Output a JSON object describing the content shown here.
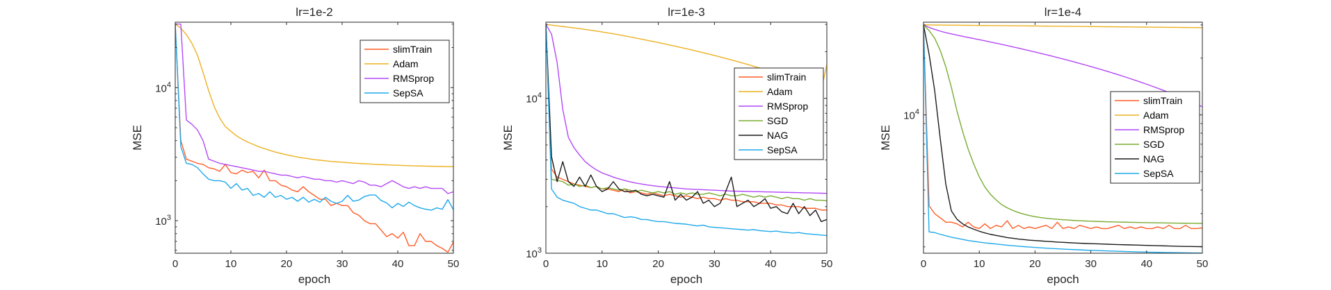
{
  "figure": {
    "xlabel": "epoch",
    "ylabel": "MSE"
  },
  "chart_data": [
    {
      "type": "line",
      "title": "lr=1e-2",
      "xlabel": "epoch",
      "ylabel": "MSE",
      "yscale": "log",
      "xlim": [
        0,
        50
      ],
      "ylim": [
        570,
        31000
      ],
      "xticks": [
        "0",
        "10",
        "20",
        "30",
        "40",
        "50"
      ],
      "yticks": [
        {
          "base": "10",
          "exp": "3",
          "value": 1000
        },
        {
          "base": "10",
          "exp": "4",
          "value": 10000
        }
      ],
      "legend_position": "top-right",
      "series": [
        {
          "name": "slimTrain",
          "color": "#ff5b25",
          "values": [
            30000,
            4000,
            2900,
            2800,
            2700,
            2650,
            2500,
            2450,
            2350,
            2650,
            2300,
            2250,
            2400,
            2300,
            2350,
            2100,
            2400,
            2000,
            2000,
            1850,
            1800,
            1700,
            1650,
            1800,
            1650,
            1550,
            1450,
            1450,
            1300,
            1350,
            1300,
            1300,
            1150,
            1100,
            1000,
            950,
            950,
            850,
            760,
            800,
            740,
            820,
            650,
            650,
            800,
            700,
            700,
            650,
            620,
            580,
            690
          ]
        },
        {
          "name": "Adam",
          "color": "#ecb01f",
          "values": [
            30000,
            28000,
            25000,
            21500,
            17500,
            13000,
            9500,
            7200,
            5900,
            5100,
            4700,
            4350,
            4100,
            3900,
            3750,
            3600,
            3480,
            3380,
            3280,
            3200,
            3130,
            3070,
            3010,
            2960,
            2920,
            2880,
            2850,
            2820,
            2790,
            2770,
            2750,
            2730,
            2710,
            2695,
            2680,
            2665,
            2650,
            2640,
            2630,
            2620,
            2610,
            2600,
            2592,
            2585,
            2578,
            2572,
            2566,
            2560,
            2555,
            2550,
            2545
          ]
        },
        {
          "name": "RMSprop",
          "color": "#b347f7",
          "values": [
            30000,
            30000,
            5700,
            5300,
            4800,
            4000,
            2900,
            2800,
            2700,
            2650,
            2600,
            2550,
            2500,
            2450,
            2400,
            2350,
            2350,
            2300,
            2250,
            2200,
            2200,
            2150,
            2100,
            2150,
            2100,
            2050,
            2050,
            2000,
            2000,
            1950,
            2000,
            1950,
            1900,
            2000,
            1950,
            1850,
            1850,
            1800,
            1900,
            2000,
            1900,
            1800,
            1750,
            1800,
            1750,
            1800,
            1750,
            1750,
            1750,
            1600,
            1650
          ]
        },
        {
          "name": "SepSA",
          "color": "#1ea8ea",
          "values": [
            30000,
            3600,
            2700,
            2650,
            2500,
            2250,
            2050,
            2000,
            2000,
            1950,
            1750,
            1900,
            1700,
            1750,
            1550,
            1600,
            1500,
            1650,
            1500,
            1550,
            1450,
            1500,
            1400,
            1500,
            1380,
            1450,
            1380,
            1500,
            1400,
            1350,
            1400,
            1550,
            1400,
            1430,
            1520,
            1560,
            1560,
            1420,
            1360,
            1250,
            1350,
            1280,
            1380,
            1300,
            1250,
            1220,
            1200,
            1250,
            1220,
            1440,
            1210
          ]
        }
      ]
    },
    {
      "type": "line",
      "title": "lr=1e-3",
      "xlabel": "epoch",
      "ylabel": "MSE",
      "yscale": "log",
      "xlim": [
        0,
        50
      ],
      "ylim": [
        1000,
        31000
      ],
      "xticks": [
        "0",
        "10",
        "20",
        "30",
        "40",
        "50"
      ],
      "yticks": [
        {
          "base": "10",
          "exp": "3",
          "value": 1000
        },
        {
          "base": "10",
          "exp": "4",
          "value": 10000
        }
      ],
      "legend_position": "center-right",
      "series": [
        {
          "name": "slimTrain",
          "color": "#ff5b25",
          "values": [
            30000,
            3500,
            3100,
            3000,
            2900,
            2800,
            2750,
            2700,
            2650,
            2700,
            2600,
            2600,
            2550,
            2500,
            2600,
            2450,
            2500,
            2450,
            2400,
            2450,
            2400,
            2350,
            2400,
            2350,
            2300,
            2350,
            2300,
            2250,
            2300,
            2250,
            2250,
            2200,
            2250,
            2200,
            2200,
            2150,
            2150,
            2150,
            2100,
            2100,
            2100,
            2050,
            2050,
            2000,
            2000,
            2000,
            1950,
            1950,
            1950,
            1900,
            1900
          ]
        },
        {
          "name": "Adam",
          "color": "#ecb01f",
          "values": [
            30000,
            29700,
            29400,
            29100,
            28800,
            28500,
            28200,
            27850,
            27500,
            27150,
            26800,
            26450,
            26100,
            25700,
            25300,
            24900,
            24500,
            24100,
            23700,
            23300,
            22900,
            22500,
            22100,
            21700,
            21300,
            20900,
            20500,
            20100,
            19700,
            19300,
            18900,
            18500,
            18100,
            17700,
            17300,
            16900,
            16500,
            16100,
            15700,
            15300,
            14900,
            14500,
            14100,
            13700,
            13300,
            12900,
            12500,
            12100,
            11700,
            11300,
            16500
          ]
        },
        {
          "name": "RMSprop",
          "color": "#b347f7",
          "values": [
            30000,
            26000,
            17000,
            8500,
            5600,
            4800,
            4300,
            3900,
            3650,
            3450,
            3300,
            3200,
            3100,
            3020,
            2950,
            2890,
            2840,
            2800,
            2760,
            2730,
            2700,
            2680,
            2660,
            2640,
            2620,
            2600,
            2590,
            2580,
            2570,
            2560,
            2550,
            2540,
            2530,
            2520,
            2515,
            2510,
            2505,
            2500,
            2495,
            2490,
            2485,
            2480,
            2475,
            2470,
            2465,
            2460,
            2455,
            2450,
            2445,
            2440,
            2435
          ]
        },
        {
          "name": "SGD",
          "color": "#78ab30",
          "values": [
            30000,
            3000,
            2950,
            2900,
            2750,
            2800,
            2700,
            2750,
            2650,
            2700,
            2600,
            2650,
            2600,
            2550,
            2600,
            2550,
            2500,
            2550,
            2500,
            2450,
            2500,
            2450,
            2500,
            2400,
            2450,
            2400,
            2450,
            2400,
            2400,
            2450,
            2400,
            2350,
            2400,
            2350,
            2350,
            2400,
            2350,
            2300,
            2350,
            2300,
            2350,
            2300,
            2250,
            2300,
            2250,
            2250,
            2200,
            2250,
            2200,
            2200,
            2180
          ]
        },
        {
          "name": "NAG",
          "color": "#1a1a1a",
          "values": [
            30000,
            4200,
            2900,
            3900,
            2900,
            2700,
            3100,
            2700,
            3200,
            2700,
            2500,
            2600,
            2900,
            2600,
            2500,
            2500,
            2550,
            2400,
            2350,
            2400,
            2350,
            2300,
            2900,
            2200,
            2400,
            2200,
            2300,
            2500,
            2100,
            2200,
            2000,
            2100,
            2500,
            3100,
            2000,
            2100,
            2200,
            2000,
            2100,
            2250,
            1950,
            2000,
            1850,
            1800,
            2100,
            1800,
            2000,
            1750,
            1900,
            1600,
            1650
          ]
        },
        {
          "name": "SepSA",
          "color": "#1ea8ea",
          "values": [
            30000,
            2600,
            2300,
            2200,
            2150,
            2100,
            2000,
            1950,
            1900,
            1900,
            1850,
            1800,
            1800,
            1750,
            1700,
            1720,
            1700,
            1650,
            1650,
            1620,
            1600,
            1600,
            1580,
            1560,
            1550,
            1540,
            1520,
            1500,
            1520,
            1480,
            1470,
            1460,
            1450,
            1440,
            1430,
            1420,
            1410,
            1420,
            1400,
            1390,
            1380,
            1390,
            1370,
            1360,
            1350,
            1360,
            1340,
            1330,
            1320,
            1310,
            1300
          ]
        }
      ]
    },
    {
      "type": "line",
      "title": "lr=1e-4",
      "xlabel": "epoch",
      "ylabel": "MSE",
      "yscale": "log",
      "xlim": [
        0,
        50
      ],
      "ylim": [
        1850,
        31000
      ],
      "xticks": [
        "0",
        "10",
        "20",
        "30",
        "40",
        "50"
      ],
      "yticks": [
        {
          "base": "10",
          "exp": "4",
          "value": 10000
        }
      ],
      "legend_position": "center-right",
      "series": [
        {
          "name": "slimTrain",
          "color": "#ff5b25",
          "values": [
            30000,
            3300,
            3000,
            2850,
            2700,
            2700,
            2650,
            2550,
            2700,
            2550,
            2500,
            2650,
            2500,
            2600,
            2550,
            2750,
            2500,
            2600,
            2500,
            2550,
            2500,
            2550,
            2600,
            2500,
            2700,
            2500,
            2550,
            2500,
            2600,
            2550,
            2500,
            2550,
            2500,
            2500,
            2550,
            2600,
            2500,
            2550,
            2500,
            2550,
            2500,
            2500,
            2550,
            2500,
            2600,
            2500,
            2500,
            2600,
            2500,
            2500,
            2520
          ]
        },
        {
          "name": "Adam",
          "color": "#ecb01f",
          "values": [
            30000,
            29980,
            29960,
            29940,
            29920,
            29900,
            29880,
            29860,
            29840,
            29820,
            29800,
            29780,
            29760,
            29740,
            29720,
            29700,
            29680,
            29660,
            29640,
            29620,
            29600,
            29580,
            29560,
            29540,
            29520,
            29500,
            29480,
            29460,
            29440,
            29420,
            29400,
            29380,
            29360,
            29340,
            29320,
            29300,
            29280,
            29260,
            29240,
            29220,
            29200,
            29180,
            29160,
            29140,
            29120,
            29100,
            29080,
            29060,
            29040,
            29020,
            29000
          ]
        },
        {
          "name": "RMSprop",
          "color": "#b347f7",
          "values": [
            30000,
            29100,
            28400,
            27800,
            27300,
            26900,
            26500,
            26100,
            25750,
            25400,
            25050,
            24700,
            24350,
            24000,
            23650,
            23300,
            22950,
            22600,
            22250,
            21900,
            21550,
            21200,
            20850,
            20500,
            20150,
            19800,
            19450,
            19100,
            18750,
            18400,
            18050,
            17700,
            17350,
            17000,
            16650,
            16300,
            15950,
            15600,
            15250,
            14900,
            14550,
            14200,
            13850,
            13500,
            13150,
            12800,
            12450,
            12100,
            11750,
            11400,
            11050
          ]
        },
        {
          "name": "SGD",
          "color": "#78ab30",
          "values": [
            30000,
            28000,
            25500,
            22000,
            18000,
            14000,
            10500,
            8200,
            6600,
            5500,
            4700,
            4150,
            3800,
            3550,
            3350,
            3220,
            3120,
            3040,
            2980,
            2930,
            2890,
            2860,
            2835,
            2815,
            2800,
            2785,
            2772,
            2760,
            2750,
            2742,
            2735,
            2728,
            2722,
            2716,
            2711,
            2706,
            2702,
            2698,
            2694,
            2690,
            2687,
            2684,
            2681,
            2678,
            2675,
            2672,
            2670,
            2668,
            2666,
            2664,
            2662
          ]
        },
        {
          "name": "NAG",
          "color": "#1a1a1a",
          "values": [
            30000,
            21000,
            13500,
            7500,
            4300,
            3100,
            2800,
            2650,
            2550,
            2480,
            2420,
            2370,
            2330,
            2300,
            2270,
            2240,
            2220,
            2200,
            2185,
            2170,
            2160,
            2150,
            2140,
            2130,
            2120,
            2112,
            2105,
            2098,
            2091,
            2085,
            2080,
            2075,
            2070,
            2065,
            2060,
            2056,
            2052,
            2048,
            2044,
            2040,
            2036,
            2032,
            2028,
            2024,
            2020,
            2016,
            2012,
            2010,
            2008,
            2006,
            2005
          ]
        },
        {
          "name": "SepSA",
          "color": "#1ea8ea",
          "values": [
            30000,
            2400,
            2380,
            2330,
            2290,
            2250,
            2220,
            2190,
            2160,
            2140,
            2120,
            2100,
            2085,
            2070,
            2055,
            2040,
            2028,
            2016,
            2005,
            1995,
            1985,
            1976,
            1968,
            1960,
            1953,
            1946,
            1940,
            1934,
            1928,
            1922,
            1917,
            1912,
            1907,
            1902,
            1898,
            1894,
            1890,
            1886,
            1882,
            1879,
            1876,
            1873,
            1870,
            1867,
            1864,
            1862,
            1860,
            1858,
            1856,
            1854,
            1852
          ]
        }
      ]
    }
  ]
}
